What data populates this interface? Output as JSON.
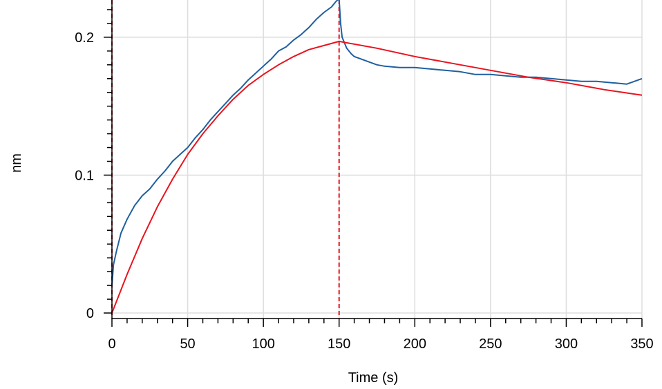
{
  "chart_data": {
    "type": "line",
    "title": "",
    "xlabel": "Time (s)",
    "ylabel": "nm",
    "xlim": [
      0,
      350
    ],
    "ylim": [
      -0.004,
      0.227
    ],
    "x_ticks": [
      0,
      50,
      100,
      150,
      200,
      250,
      300,
      350
    ],
    "y_ticks": [
      0,
      0.1,
      0.2
    ],
    "x_tick_labels": [
      "0",
      "50",
      "100",
      "150",
      "200",
      "250",
      "300",
      "350"
    ],
    "y_tick_labels": [
      "0",
      "0.1",
      "0.2"
    ],
    "grid": true,
    "vertical_markers": [
      0,
      150
    ],
    "colors": {
      "data": "#1f5fa0",
      "fit": "#e8141e",
      "marker": "#e8141e",
      "grid": "#dddddd"
    },
    "series": [
      {
        "role": "measured",
        "x": [
          0,
          1,
          3,
          6,
          10,
          15,
          20,
          25,
          30,
          35,
          40,
          45,
          50,
          55,
          60,
          65,
          70,
          75,
          80,
          85,
          90,
          95,
          100,
          105,
          110,
          115,
          120,
          125,
          130,
          135,
          140,
          145,
          148,
          150,
          151,
          152,
          155,
          158,
          160,
          165,
          170,
          175,
          180,
          190,
          200,
          210,
          220,
          230,
          240,
          250,
          260,
          270,
          280,
          290,
          300,
          310,
          320,
          330,
          340,
          350
        ],
        "y": [
          0.02,
          0.035,
          0.045,
          0.058,
          0.068,
          0.078,
          0.085,
          0.09,
          0.097,
          0.103,
          0.11,
          0.115,
          0.12,
          0.127,
          0.133,
          0.14,
          0.146,
          0.152,
          0.158,
          0.163,
          0.169,
          0.174,
          0.179,
          0.184,
          0.19,
          0.193,
          0.198,
          0.202,
          0.207,
          0.213,
          0.218,
          0.222,
          0.226,
          0.228,
          0.21,
          0.2,
          0.192,
          0.188,
          0.186,
          0.184,
          0.182,
          0.18,
          0.179,
          0.178,
          0.178,
          0.177,
          0.176,
          0.175,
          0.173,
          0.173,
          0.172,
          0.171,
          0.171,
          0.17,
          0.169,
          0.168,
          0.168,
          0.167,
          0.166,
          0.17
        ]
      },
      {
        "role": "fit",
        "x": [
          0,
          10,
          20,
          30,
          40,
          50,
          60,
          70,
          80,
          90,
          100,
          110,
          120,
          130,
          140,
          150,
          175,
          200,
          225,
          250,
          275,
          300,
          325,
          350
        ],
        "y": [
          0,
          0.028,
          0.054,
          0.077,
          0.097,
          0.115,
          0.13,
          0.143,
          0.155,
          0.165,
          0.173,
          0.18,
          0.186,
          0.191,
          0.194,
          0.197,
          0.192,
          0.186,
          0.181,
          0.176,
          0.171,
          0.167,
          0.162,
          0.158
        ]
      }
    ]
  }
}
